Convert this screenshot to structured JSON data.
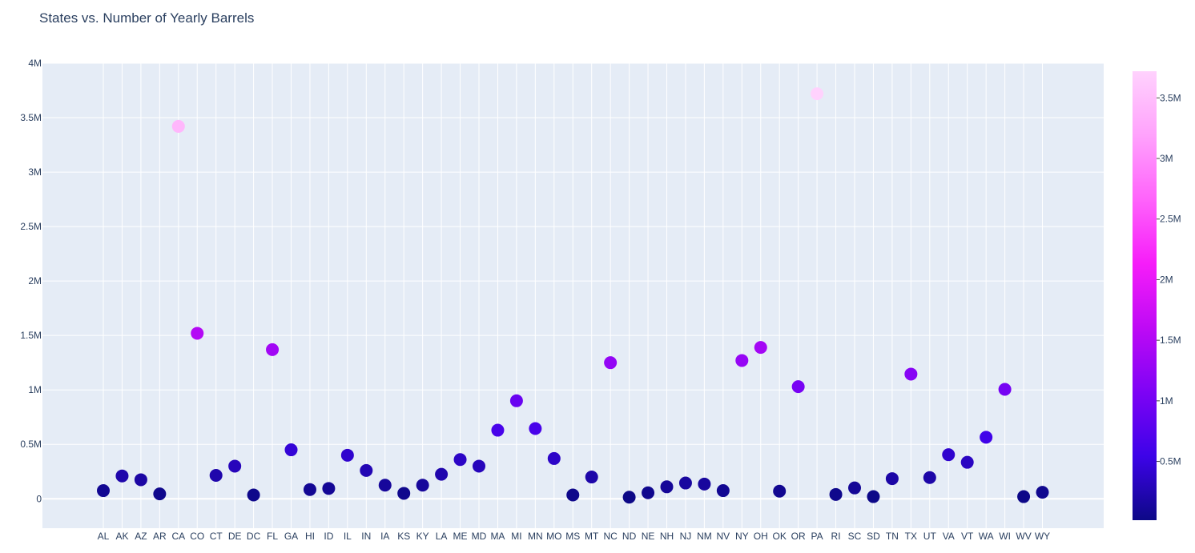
{
  "chart_data": {
    "type": "scatter",
    "title": "States vs. Number of Yearly Barrels",
    "xlabel": "",
    "ylabel": "",
    "categories": [
      "AL",
      "AK",
      "AZ",
      "AR",
      "CA",
      "CO",
      "CT",
      "DE",
      "DC",
      "FL",
      "GA",
      "HI",
      "ID",
      "IL",
      "IN",
      "IA",
      "KS",
      "KY",
      "LA",
      "ME",
      "MD",
      "MA",
      "MI",
      "MN",
      "MO",
      "MS",
      "MT",
      "NC",
      "ND",
      "NE",
      "NH",
      "NJ",
      "NM",
      "NV",
      "NY",
      "OH",
      "OK",
      "OR",
      "PA",
      "RI",
      "SC",
      "SD",
      "TN",
      "TX",
      "UT",
      "VA",
      "VT",
      "WA",
      "WI",
      "WV",
      "WY"
    ],
    "values": [
      75000,
      210000,
      175000,
      45000,
      3420000,
      1520000,
      215000,
      300000,
      35000,
      1370000,
      450000,
      85000,
      95000,
      400000,
      260000,
      125000,
      50000,
      125000,
      225000,
      360000,
      300000,
      630000,
      900000,
      645000,
      370000,
      35000,
      200000,
      1250000,
      15000,
      55000,
      110000,
      145000,
      135000,
      75000,
      1270000,
      1390000,
      70000,
      1030000,
      3720000,
      40000,
      100000,
      20000,
      185000,
      1145000,
      195000,
      405000,
      335000,
      565000,
      1005000,
      20000,
      60000
    ],
    "ylim": [
      -270000,
      4000000
    ],
    "y_ticks": [
      0,
      500000,
      1000000,
      1500000,
      2000000,
      2500000,
      3000000,
      3500000,
      4000000
    ],
    "y_tick_labels": [
      "0",
      "0.5M",
      "1M",
      "1.5M",
      "2M",
      "2.5M",
      "3M",
      "3.5M",
      "4M"
    ],
    "colorbar": {
      "min": 15000,
      "max": 3720000,
      "ticks": [
        500000,
        1000000,
        1500000,
        2000000,
        2500000,
        3000000,
        3500000
      ],
      "tick_labels": [
        "0.5M",
        "1M",
        "1.5M",
        "2M",
        "2.5M",
        "3M",
        "3.5M"
      ],
      "colors": [
        "#0d0887",
        "#3d03e8",
        "#7e03f5",
        "#be0af5",
        "#f61df9",
        "#ff63fb",
        "#ffa2fc",
        "#ffd2fd"
      ]
    },
    "grid": true,
    "legend": "colorbar-right"
  },
  "colors": {
    "plot_bg": "#e5ecf6",
    "grid": "#ffffff",
    "text": "#2a3f5f"
  }
}
